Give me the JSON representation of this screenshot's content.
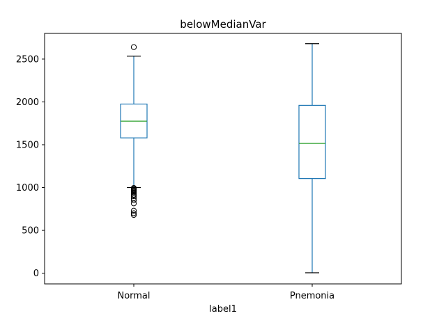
{
  "chart_data": {
    "type": "box",
    "title": "belowMedianVar",
    "xlabel": "label1",
    "ylabel": "",
    "ylim": [
      -125,
      2800
    ],
    "yticks": [
      0,
      500,
      1000,
      1500,
      2000,
      2500
    ],
    "ytick_labels": [
      "0",
      "500",
      "1000",
      "1500",
      "2000",
      "2500"
    ],
    "categories": [
      "Normal",
      "Pnemonia"
    ],
    "grid": false,
    "box_color": "#1f77b4",
    "median_color": "#2ca02c",
    "boxes": [
      {
        "label": "Normal",
        "whisker_low": 1000,
        "q1": 1580,
        "median": 1775,
        "q3": 1975,
        "whisker_high": 2535,
        "outliers": [
          2640,
          995,
          985,
          975,
          965,
          955,
          945,
          930,
          915,
          900,
          875,
          850,
          815,
          730,
          700,
          680
        ]
      },
      {
        "label": "Pnemonia",
        "whisker_low": 5,
        "q1": 1105,
        "median": 1515,
        "q3": 1960,
        "whisker_high": 2680,
        "outliers": []
      }
    ]
  }
}
